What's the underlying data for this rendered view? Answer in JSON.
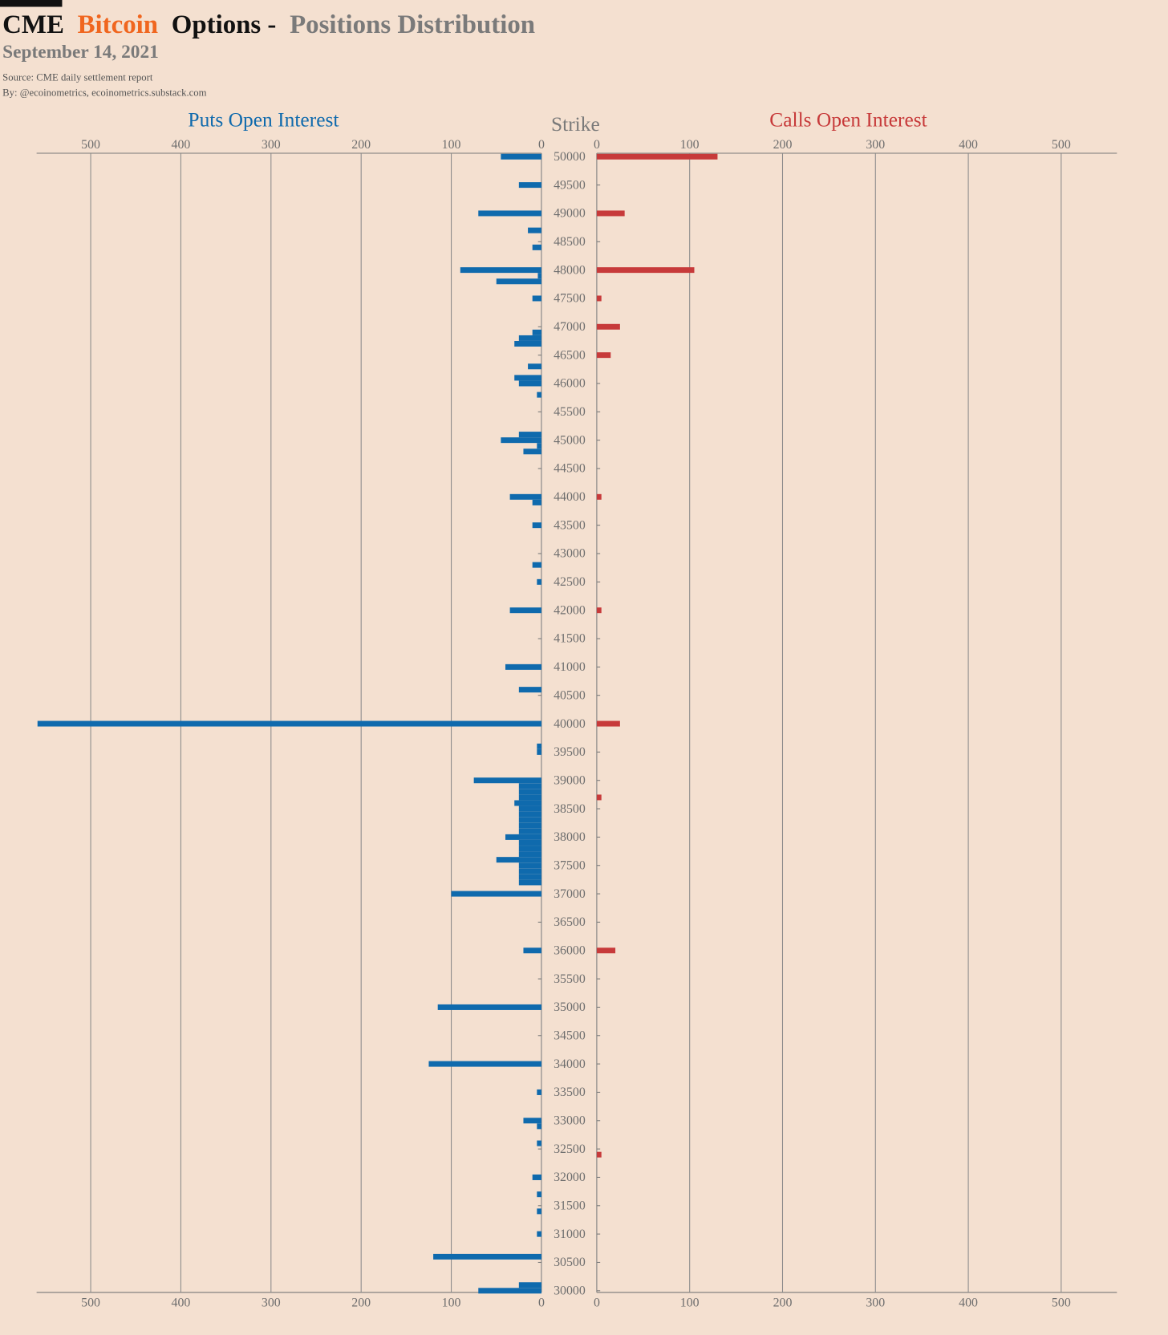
{
  "chart_data": {
    "type": "bar",
    "orientation": "horizontal",
    "title_parts": [
      {
        "text": "CME",
        "color": "#111111"
      },
      {
        "text": "Bitcoin",
        "color": "#f0661f"
      },
      {
        "text": "Options -",
        "color": "#111111"
      },
      {
        "text": "Positions Distribution",
        "color": "#7a7a7a"
      }
    ],
    "subtitle": "September 14, 2021",
    "source": "Source: CME daily settlement report",
    "byline": "By: @ecoinometrics, ecoinometrics.substack.com",
    "y_label": "Strike",
    "ylim": [
      30000,
      50000
    ],
    "yticks": [
      30000,
      30500,
      31000,
      31500,
      32000,
      32500,
      33000,
      33500,
      34000,
      34500,
      35000,
      35500,
      36000,
      36500,
      37000,
      37500,
      38000,
      38500,
      39000,
      39500,
      40000,
      40500,
      41000,
      41500,
      42000,
      42500,
      43000,
      43500,
      44000,
      44500,
      45000,
      45500,
      46000,
      46500,
      47000,
      47500,
      48000,
      48500,
      49000,
      49500,
      50000
    ],
    "xlim": [
      0,
      560
    ],
    "xticks": [
      0,
      100,
      200,
      300,
      400,
      500
    ],
    "grid": true,
    "series": [
      {
        "name": "Puts Open Interest",
        "color": "#0f6aad",
        "side": "left",
        "strikes": [
          50000,
          49500,
          49000,
          48700,
          48400,
          48000,
          47900,
          47800,
          47500,
          46900,
          46800,
          46700,
          46300,
          46100,
          46000,
          45800,
          45100,
          45000,
          44900,
          44800,
          44000,
          43900,
          43500,
          42800,
          42500,
          42000,
          41000,
          40600,
          40000,
          39600,
          39500,
          39000,
          38900,
          38800,
          38700,
          38600,
          38500,
          38400,
          38300,
          38200,
          38100,
          38000,
          37900,
          37800,
          37700,
          37600,
          37500,
          37400,
          37300,
          37200,
          37000,
          36000,
          35000,
          34000,
          33500,
          33000,
          32900,
          32600,
          32000,
          31700,
          31400,
          31000,
          30600,
          30100,
          30000
        ],
        "values": [
          45,
          25,
          70,
          15,
          10,
          90,
          4,
          50,
          10,
          10,
          25,
          30,
          15,
          30,
          25,
          5,
          25,
          45,
          5,
          20,
          35,
          10,
          10,
          10,
          5,
          35,
          40,
          25,
          559,
          5,
          5,
          75,
          25,
          25,
          25,
          30,
          25,
          25,
          25,
          25,
          25,
          40,
          25,
          25,
          25,
          50,
          25,
          25,
          25,
          25,
          100,
          20,
          115,
          125,
          5,
          20,
          5,
          5,
          10,
          5,
          5,
          5,
          120,
          25,
          70
        ]
      },
      {
        "name": "Calls Open Interest",
        "color": "#c73a3a",
        "side": "right",
        "strikes": [
          50000,
          49000,
          48000,
          47500,
          47000,
          46500,
          44000,
          42000,
          40000,
          38700,
          36000,
          32400
        ],
        "values": [
          130,
          30,
          105,
          5,
          25,
          15,
          5,
          5,
          25,
          5,
          20,
          5
        ]
      }
    ]
  }
}
